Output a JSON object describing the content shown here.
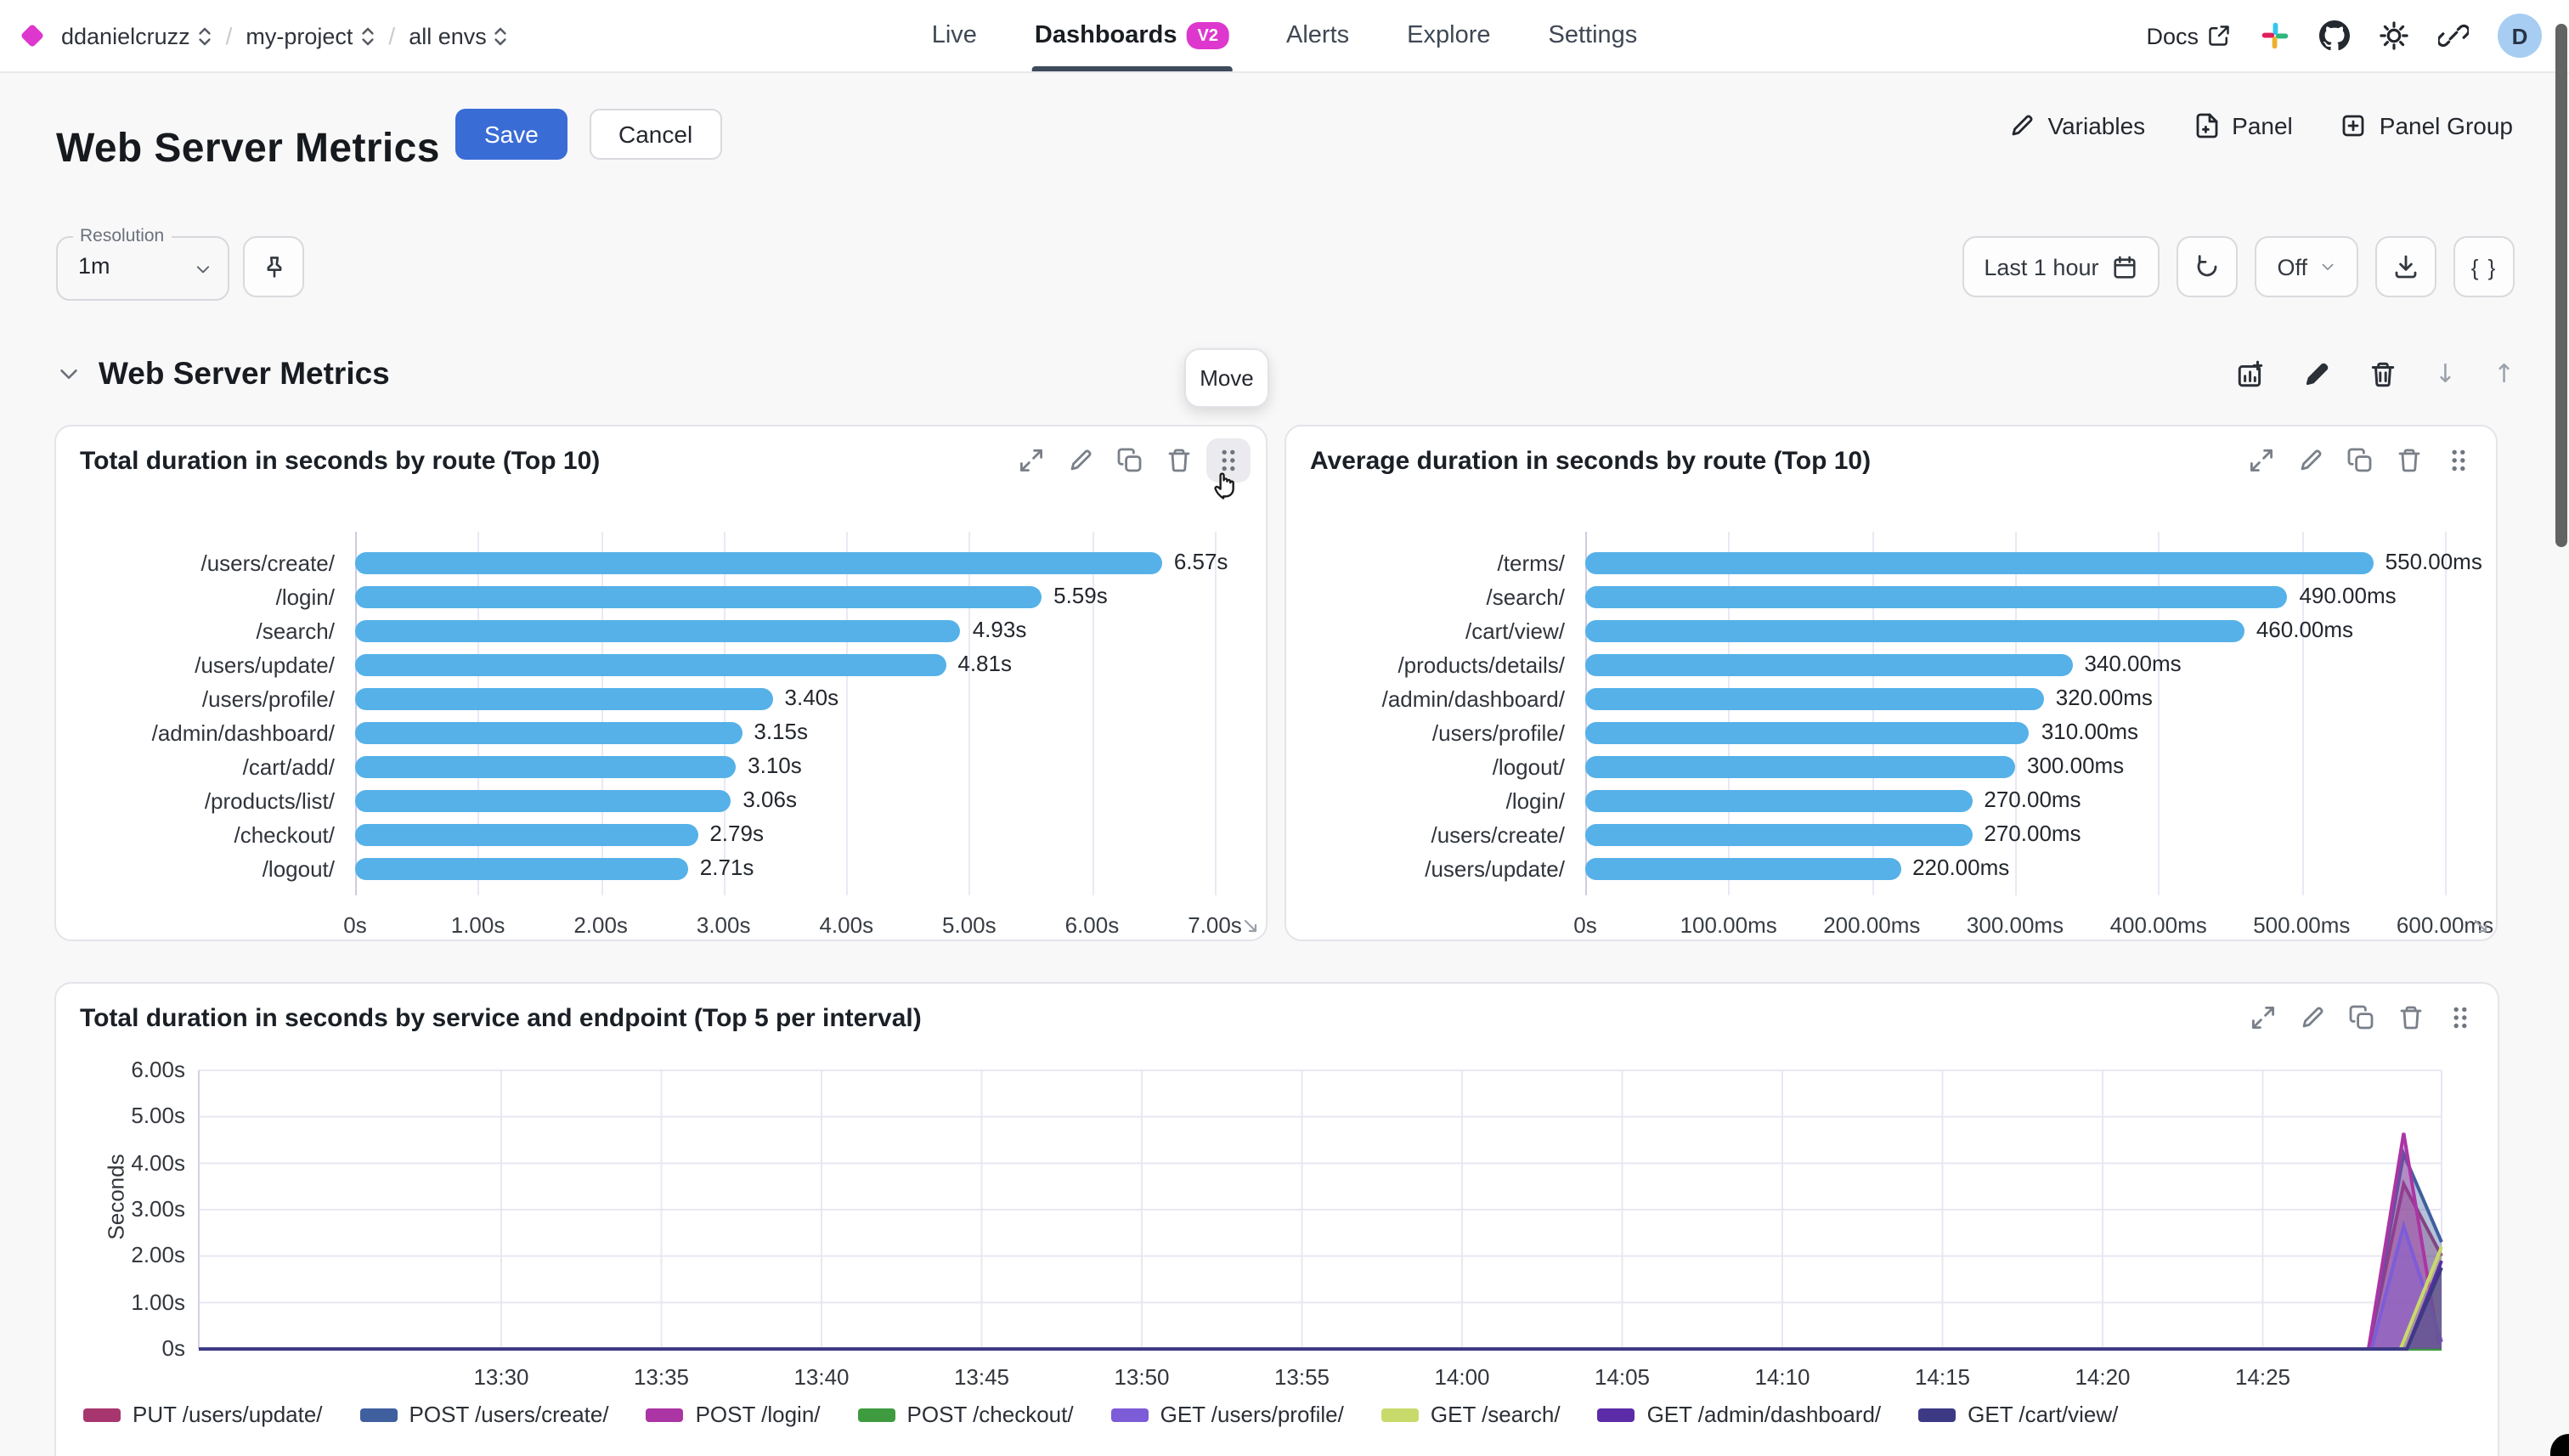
{
  "topbar": {
    "org": "ddanielcruzz",
    "project": "my-project",
    "env": "all envs",
    "nav": [
      {
        "label": "Live"
      },
      {
        "label": "Dashboards",
        "badge": "V2"
      },
      {
        "label": "Alerts"
      },
      {
        "label": "Explore"
      },
      {
        "label": "Settings"
      }
    ],
    "docs_label": "Docs",
    "avatar_initial": "D"
  },
  "header": {
    "title": "Web Server Metrics",
    "save_label": "Save",
    "cancel_label": "Cancel",
    "variables_label": "Variables",
    "panel_label": "Panel",
    "panel_group_label": "Panel Group"
  },
  "toolbar": {
    "resolution_label": "Resolution",
    "resolution_value": "1m",
    "time_range": "Last 1 hour",
    "refresh_mode": "Off",
    "braces_label": "{ }"
  },
  "section": {
    "title": "Web Server Metrics",
    "move_tooltip": "Move"
  },
  "chart_data": [
    {
      "type": "bar",
      "title": "Total duration in seconds by route (Top 10)",
      "orientation": "horizontal",
      "categories": [
        "/users/create/",
        "/login/",
        "/search/",
        "/users/update/",
        "/users/profile/",
        "/admin/dashboard/",
        "/cart/add/",
        "/products/list/",
        "/checkout/",
        "/logout/"
      ],
      "values": [
        6.57,
        5.59,
        4.93,
        4.81,
        3.4,
        3.15,
        3.1,
        3.06,
        2.79,
        2.71
      ],
      "value_labels": [
        "6.57s",
        "5.59s",
        "4.93s",
        "4.81s",
        "3.40s",
        "3.15s",
        "3.10s",
        "3.06s",
        "2.79s",
        "2.71s"
      ],
      "x_ticks": [
        "0s",
        "1.00s",
        "2.00s",
        "3.00s",
        "4.00s",
        "5.00s",
        "6.00s",
        "7.00s"
      ],
      "x_max": 7,
      "bar_color": "#55b1e8"
    },
    {
      "type": "bar",
      "title": "Average duration in seconds by route (Top 10)",
      "orientation": "horizontal",
      "categories": [
        "/terms/",
        "/search/",
        "/cart/view/",
        "/products/details/",
        "/admin/dashboard/",
        "/users/profile/",
        "/logout/",
        "/login/",
        "/users/create/",
        "/users/update/"
      ],
      "values": [
        550,
        490,
        460,
        340,
        320,
        310,
        300,
        270,
        270,
        220
      ],
      "value_labels": [
        "550.00ms",
        "490.00ms",
        "460.00ms",
        "340.00ms",
        "320.00ms",
        "310.00ms",
        "300.00ms",
        "270.00ms",
        "270.00ms",
        "220.00ms"
      ],
      "x_ticks": [
        "0s",
        "100.00ms",
        "200.00ms",
        "300.00ms",
        "400.00ms",
        "500.00ms",
        "600.00ms"
      ],
      "x_max": 600,
      "bar_color": "#55b1e8"
    },
    {
      "type": "area",
      "title": "Total duration in seconds by service and endpoint (Top 5 per interval)",
      "ylabel": "Seconds",
      "y_ticks": [
        "6.00s",
        "5.00s",
        "4.00s",
        "3.00s",
        "2.00s",
        "1.00s",
        "0s"
      ],
      "y_max": 6,
      "x_ticks": [
        "13:30",
        "13:35",
        "13:40",
        "13:45",
        "13:50",
        "13:55",
        "14:00",
        "14:05",
        "14:10",
        "14:15",
        "14:20",
        "14:25"
      ],
      "tick_interval_min": 5,
      "series": [
        {
          "name": "PUT /users/update/",
          "color": "#a8366e",
          "points": [
            [
              0,
              0
            ],
            [
              58.3,
              0
            ],
            [
              59.4,
              3.55
            ],
            [
              60.6,
              2.0
            ]
          ]
        },
        {
          "name": "POST /users/create/",
          "color": "#3f5f9e",
          "points": [
            [
              0,
              0
            ],
            [
              58.3,
              0
            ],
            [
              59.4,
              4.2
            ],
            [
              60.6,
              2.3
            ]
          ]
        },
        {
          "name": "POST /login/",
          "color": "#ab35a4",
          "points": [
            [
              0,
              0
            ],
            [
              58.3,
              0
            ],
            [
              59.4,
              4.65
            ],
            [
              60.5,
              0.1
            ]
          ]
        },
        {
          "name": "POST /checkout/",
          "color": "#3f9b3f",
          "points": [
            [
              0,
              0
            ],
            [
              60.6,
              0
            ]
          ]
        },
        {
          "name": "GET /users/profile/",
          "color": "#7d5cd8",
          "points": [
            [
              0,
              0
            ],
            [
              58.4,
              0
            ],
            [
              59.4,
              2.65
            ],
            [
              60.6,
              0.15
            ]
          ]
        },
        {
          "name": "GET /search/",
          "color": "#c8da6c",
          "points": [
            [
              0,
              0
            ],
            [
              59.3,
              0
            ],
            [
              60.6,
              2.2
            ]
          ]
        },
        {
          "name": "GET /admin/dashboard/",
          "color": "#5c2ca8",
          "points": [
            [
              0,
              0
            ],
            [
              59.5,
              0
            ],
            [
              60.6,
              1.9
            ]
          ]
        },
        {
          "name": "GET /cart/view/",
          "color": "#3c3a85",
          "points": [
            [
              0,
              0
            ],
            [
              59.5,
              0
            ],
            [
              60.6,
              1.75
            ]
          ]
        }
      ]
    }
  ]
}
